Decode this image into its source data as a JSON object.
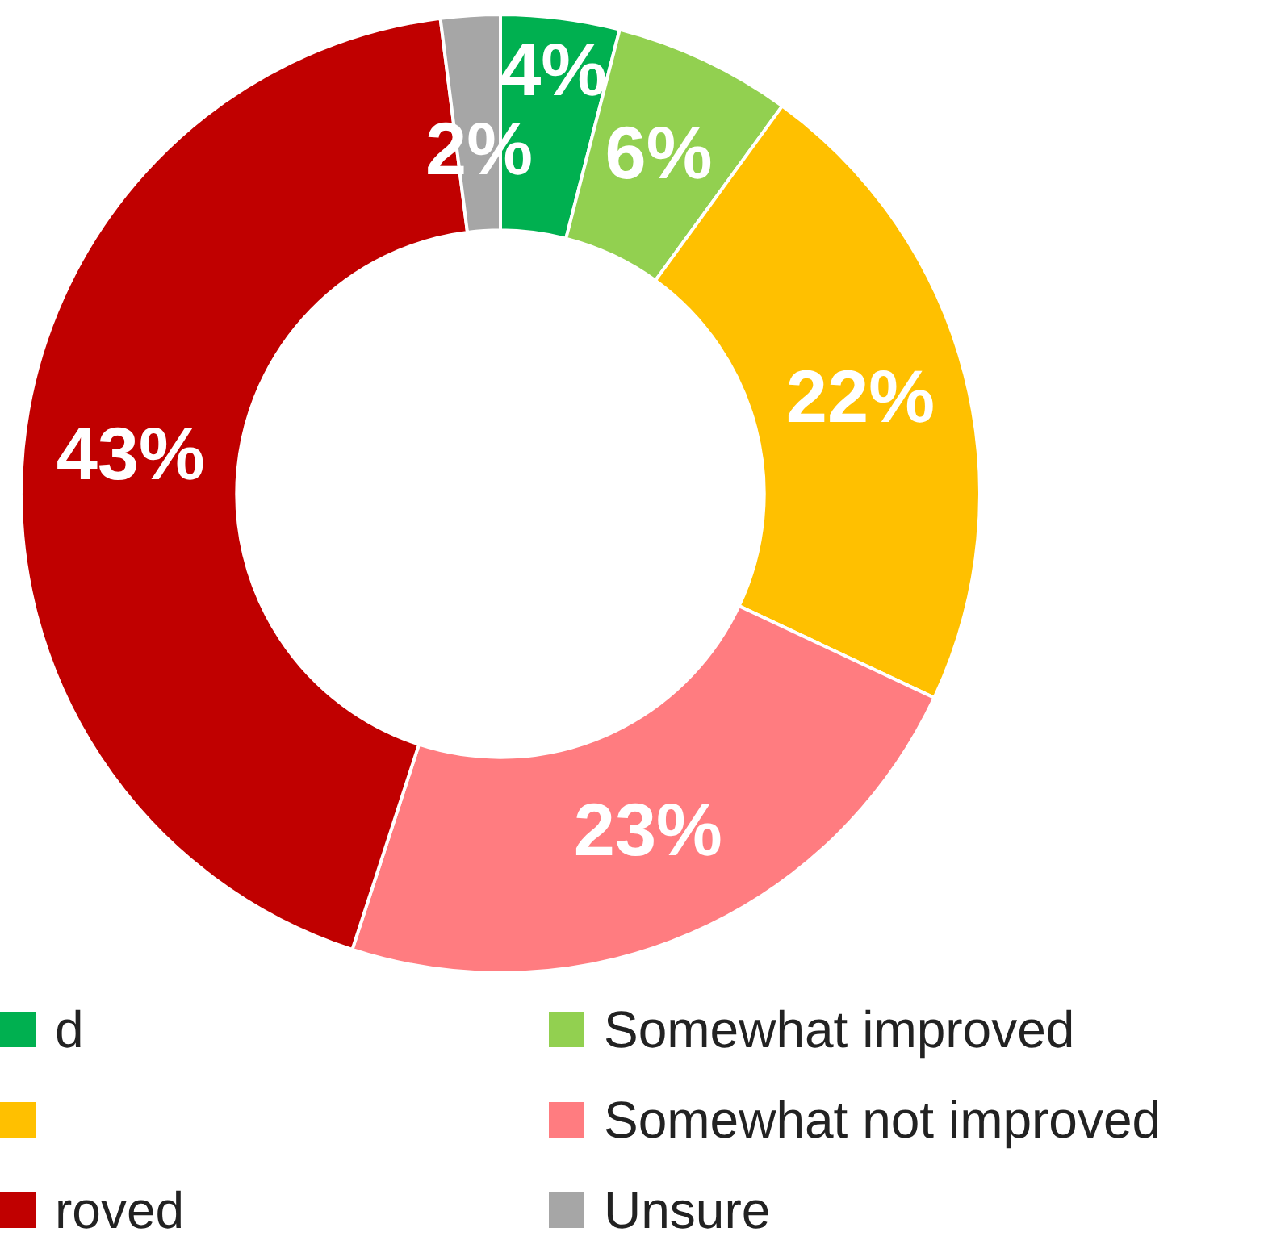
{
  "chart_data": {
    "type": "donut",
    "categories": [
      "d",
      "Somewhat improved",
      null,
      "Somewhat not improved",
      "roved",
      "Unsure"
    ],
    "values": [
      4,
      6,
      22,
      23,
      43,
      2
    ],
    "value_labels": [
      "4%",
      "6%",
      "22%",
      "23%",
      "43%",
      "2%"
    ],
    "colors": [
      "#00b050",
      "#92d050",
      "#ffc000",
      "#ff7c80",
      "#c00000",
      "#a6a6a6"
    ],
    "legend": "bottom"
  }
}
